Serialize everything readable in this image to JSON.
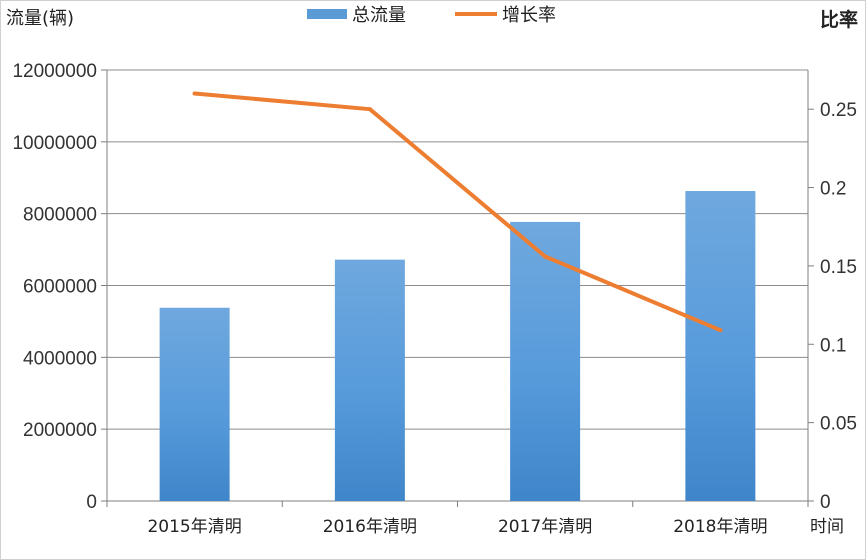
{
  "chart_data": {
    "type": "bar",
    "categories": [
      "2015年清明",
      "2016年清明",
      "2017年清明",
      "2018年清明"
    ],
    "series": [
      {
        "name": "总流量",
        "type": "bar",
        "axis": "left",
        "values": [
          5380000,
          6720000,
          7770000,
          8630000
        ],
        "color": "#5b9bd5"
      },
      {
        "name": "增长率",
        "type": "line",
        "axis": "right",
        "values": [
          0.26,
          0.25,
          0.156,
          0.109
        ],
        "color": "#ed7d31"
      }
    ],
    "ylabel": "流量(辆)",
    "y2label": "比率",
    "xlabel": "时间",
    "ylim": [
      0,
      12000000
    ],
    "yticks": [
      0,
      2000000,
      4000000,
      6000000,
      8000000,
      10000000,
      12000000
    ],
    "ytick_labels": [
      "0",
      "2000000",
      "4000000",
      "6000000",
      "8000000",
      "10000000",
      "12000000"
    ],
    "y2lim": [
      0,
      0.275
    ],
    "y2ticks": [
      0,
      0.05,
      0.1,
      0.15,
      0.2,
      0.25
    ],
    "y2tick_labels": [
      "0",
      "0.05",
      "0.1",
      "0.15",
      "0.2",
      "0.25"
    ],
    "grid": true,
    "legend": "top-center"
  }
}
